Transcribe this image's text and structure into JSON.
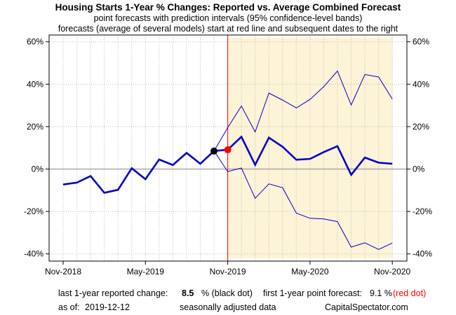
{
  "header": {
    "title": "Housing Starts 1-Year % Changes: Reported vs. Average Combined Forecast",
    "subtitle1": "point forecasts with prediction intervals (95% confidence-level bands)",
    "subtitle2": "forecasts (average of several models) start at red line and subsequent dates to the right"
  },
  "footer": {
    "reported_label": "last 1-year reported change:",
    "reported_value": "8.5",
    "reported_unit": "% (black dot)",
    "forecast_label": "first 1-year point forecast:",
    "forecast_value": "9.1 %",
    "forecast_note": "(red dot)",
    "asof_label": "as of:",
    "asof_date": "2019-12-12",
    "adjustment_note": "seasonally adjusted data",
    "source": "CapitalSpectator.com"
  },
  "chart_data": {
    "type": "line",
    "x_tick_labels": [
      "Nov-2018",
      "May-2019",
      "Nov-2019",
      "May-2020",
      "Nov-2020"
    ],
    "y_ticks": [
      -40,
      -20,
      0,
      20,
      40,
      60
    ],
    "y_tick_labels": [
      "-40%",
      "-20%",
      "0%",
      "20%",
      "40%",
      "60%"
    ],
    "ylim": [
      -42,
      62
    ],
    "grid": true,
    "x_months": [
      "2018-11",
      "2018-12",
      "2019-01",
      "2019-02",
      "2019-03",
      "2019-04",
      "2019-05",
      "2019-06",
      "2019-07",
      "2019-08",
      "2019-09",
      "2019-10",
      "2019-11",
      "2019-12",
      "2020-01",
      "2020-02",
      "2020-03",
      "2020-04",
      "2020-05",
      "2020-06",
      "2020-07",
      "2020-08",
      "2020-09",
      "2020-10",
      "2020-11"
    ],
    "reported": {
      "x": [
        "2018-11",
        "2018-12",
        "2019-01",
        "2019-02",
        "2019-03",
        "2019-04",
        "2019-05",
        "2019-06",
        "2019-07",
        "2019-08",
        "2019-09",
        "2019-10"
      ],
      "y": [
        -7.3,
        -6.4,
        -3.3,
        -11.2,
        -9.8,
        0.4,
        -4.8,
        4.5,
        1.9,
        7.6,
        2.5,
        8.5
      ]
    },
    "forecast": {
      "x": [
        "2019-10",
        "2019-11",
        "2019-12",
        "2020-01",
        "2020-02",
        "2020-03",
        "2020-04",
        "2020-05",
        "2020-06",
        "2020-07",
        "2020-08",
        "2020-09",
        "2020-10",
        "2020-11"
      ],
      "y": [
        8.5,
        9.1,
        15.2,
        2.0,
        14.8,
        10.5,
        4.4,
        4.8,
        8.0,
        10.8,
        -2.7,
        5.4,
        3.0,
        2.5
      ]
    },
    "upper_band": {
      "x": [
        "2019-10",
        "2019-11",
        "2019-12",
        "2020-01",
        "2020-02",
        "2020-03",
        "2020-04",
        "2020-05",
        "2020-06",
        "2020-07",
        "2020-08",
        "2020-09",
        "2020-10",
        "2020-11"
      ],
      "y": [
        8.5,
        19.5,
        29.7,
        17.5,
        35.8,
        32.5,
        28.8,
        32.8,
        38.8,
        46.2,
        30.2,
        44.6,
        43.4,
        33.0
      ]
    },
    "lower_band": {
      "x": [
        "2019-10",
        "2019-11",
        "2019-12",
        "2020-01",
        "2020-02",
        "2020-03",
        "2020-04",
        "2020-05",
        "2020-06",
        "2020-07",
        "2020-08",
        "2020-09",
        "2020-10",
        "2020-11"
      ],
      "y": [
        8.5,
        -1.2,
        0.5,
        -13.8,
        -7.0,
        -8.8,
        -20.8,
        -23.2,
        -23.5,
        -24.8,
        -36.8,
        -34.8,
        -37.9,
        -34.9
      ]
    },
    "last_reported_point": {
      "x": "2019-10",
      "y": 8.5
    },
    "first_forecast_point": {
      "x": "2019-11",
      "y": 9.1
    },
    "forecast_start": "2019-11",
    "colors": {
      "series": "#0000cc",
      "reported_dot": "#000000",
      "forecast_dot": "#ff0000",
      "forecast_start_line": "#ff0000",
      "forecast_shade": "#fdf3d6",
      "zero_line": "#aaaaaa",
      "grid": "#bbbbbb"
    }
  }
}
